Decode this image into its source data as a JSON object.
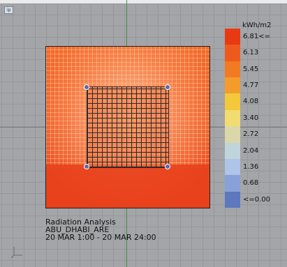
{
  "viewport": {
    "tab_label": "ip"
  },
  "legend": {
    "unit": "kWh/m2",
    "items": [
      {
        "label": "6.81<=",
        "color": "#e83a12"
      },
      {
        "label": "6.13",
        "color": "#ee5a1d"
      },
      {
        "label": "5.45",
        "color": "#f27a22"
      },
      {
        "label": "4.77",
        "color": "#f49c2b"
      },
      {
        "label": "4.08",
        "color": "#f3c93b"
      },
      {
        "label": "3.40",
        "color": "#f0dc70"
      },
      {
        "label": "2.72",
        "color": "#dcd7a8"
      },
      {
        "label": "2.04",
        "color": "#c2d4db"
      },
      {
        "label": "1.36",
        "color": "#aec4e8"
      },
      {
        "label": "0.68",
        "color": "#88a2d9"
      },
      {
        "label": "<=0.00",
        "color": "#5d78bf"
      }
    ]
  },
  "caption": {
    "line1": "Radiation Analysis",
    "line2": "ABU_DHABI_ARE",
    "line3": "20 MAR 1:00 - 20 MAR 24:00"
  }
}
